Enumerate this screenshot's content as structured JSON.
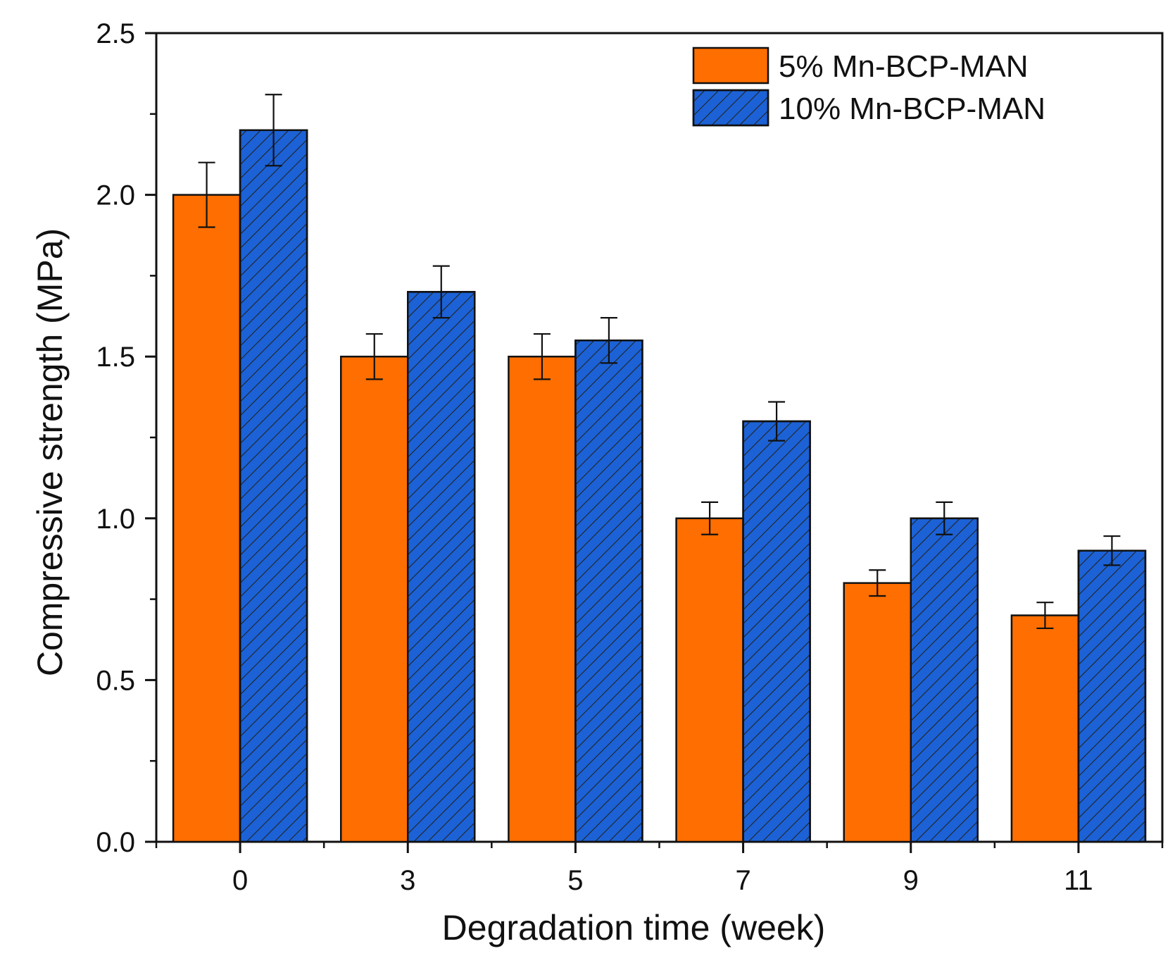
{
  "chart_data": {
    "type": "bar",
    "title": "",
    "xlabel": "Degradation time (week)",
    "ylabel": "Compressive strength (MPa)",
    "categories": [
      "0",
      "3",
      "5",
      "7",
      "9",
      "11"
    ],
    "ylim": [
      0,
      2.5
    ],
    "yticks": [
      "0.0",
      "0.5",
      "1.0",
      "1.5",
      "2.0",
      "2.5"
    ],
    "ytick_values": [
      0,
      0.5,
      1.0,
      1.5,
      2.0,
      2.5
    ],
    "legend_position": "top-right",
    "grid": false,
    "series": [
      {
        "name": "5% Mn-BCP-MAN",
        "color": "#fe6e00",
        "pattern": "solid",
        "values": [
          2.0,
          1.5,
          1.5,
          1.0,
          0.8,
          0.7
        ],
        "errors": [
          0.1,
          0.07,
          0.07,
          0.05,
          0.04,
          0.04
        ]
      },
      {
        "name": "10% Mn-BCP-MAN",
        "color": "#1c62d6",
        "pattern": "hatch",
        "values": [
          2.2,
          1.7,
          1.55,
          1.3,
          1.0,
          0.9
        ],
        "errors": [
          0.11,
          0.08,
          0.07,
          0.06,
          0.05,
          0.045
        ]
      }
    ]
  }
}
